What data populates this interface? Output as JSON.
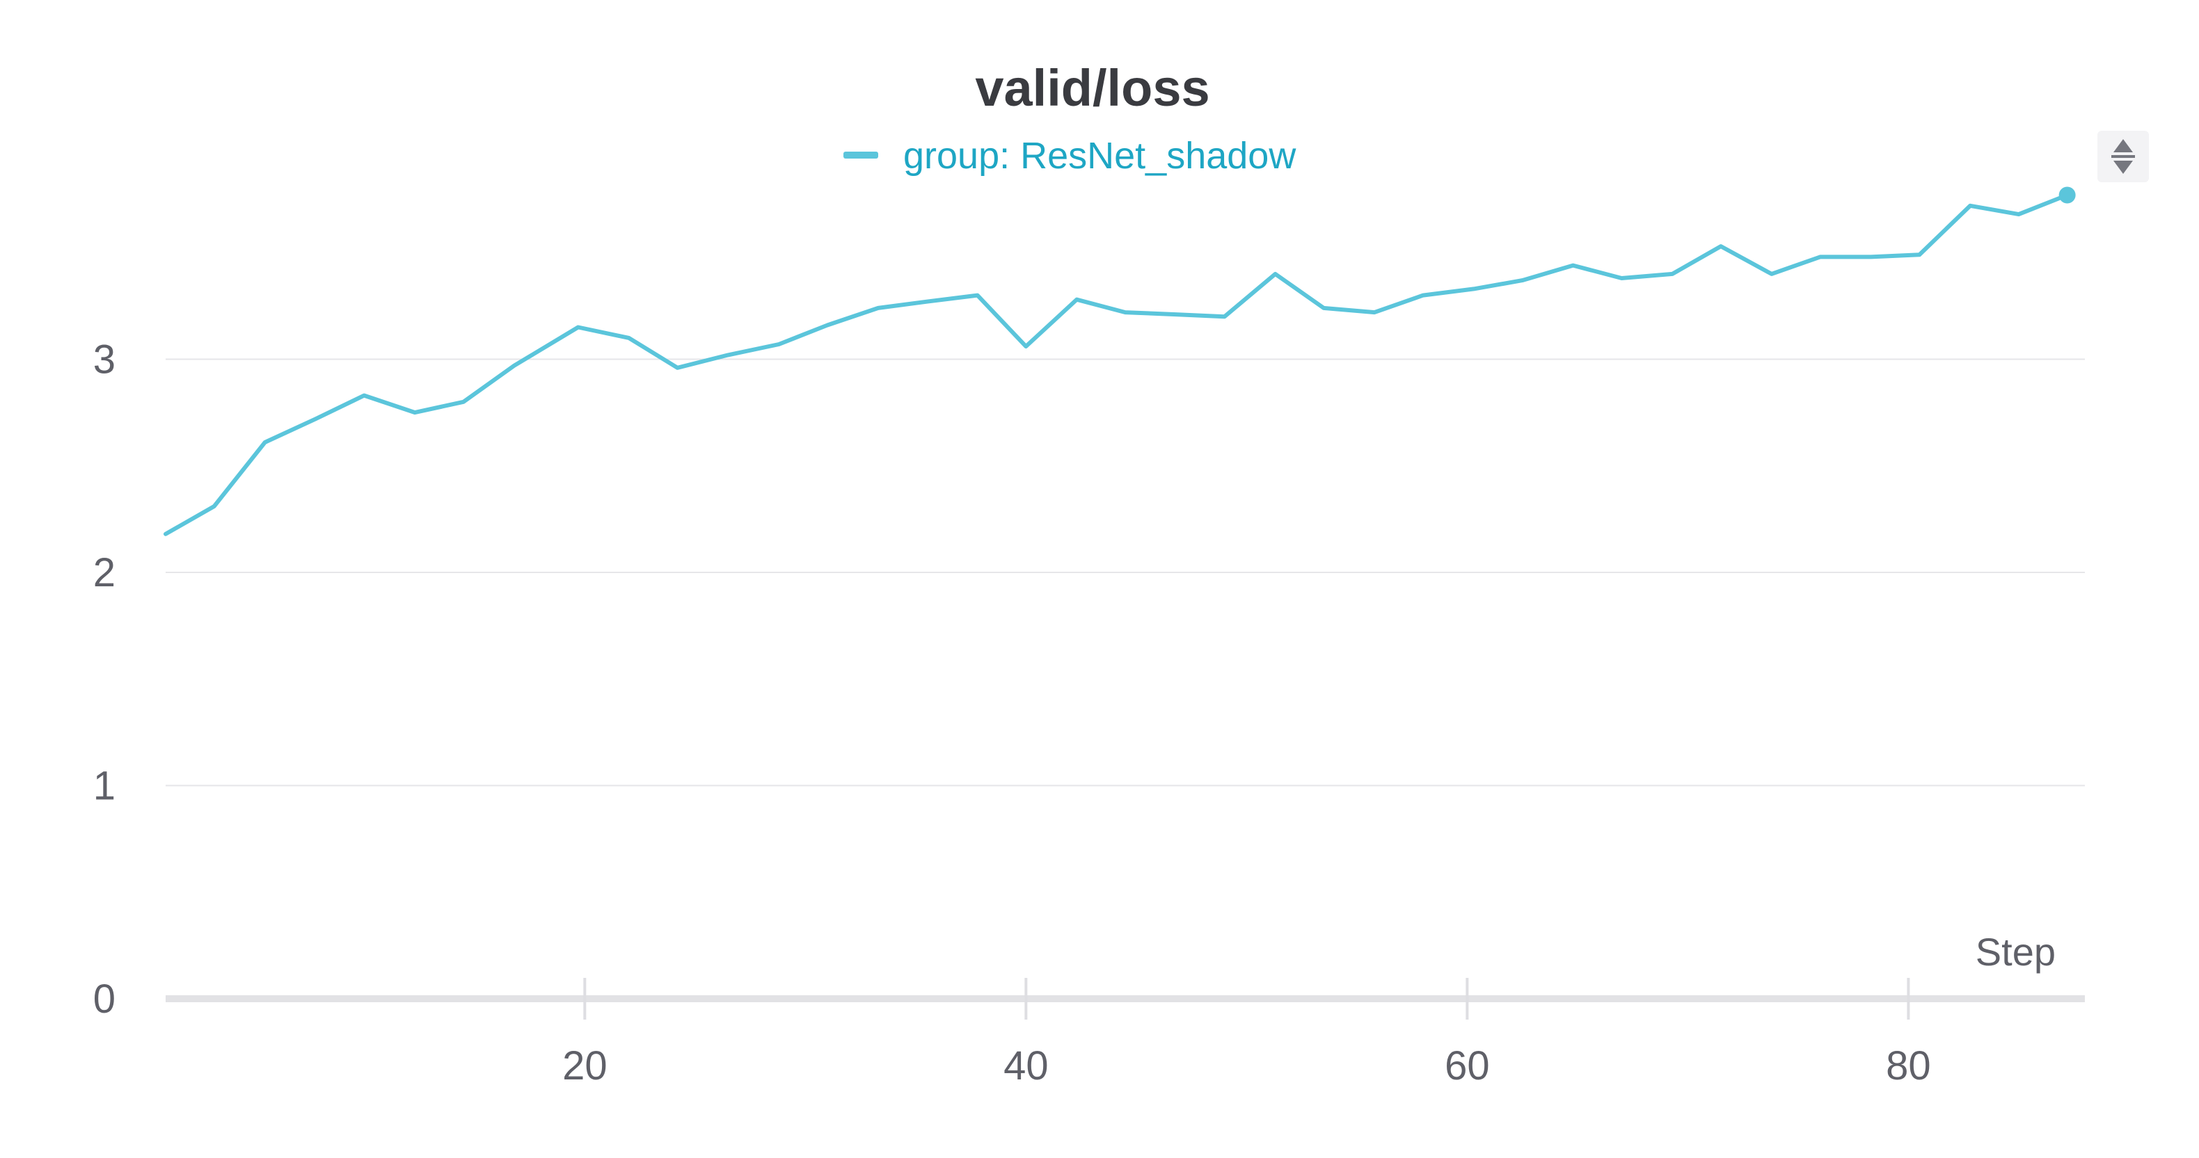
{
  "chart_data": {
    "type": "line",
    "title": "valid/loss",
    "xlabel": "Step",
    "ylabel": "",
    "xlim": [
      1,
      88
    ],
    "ylim": [
      0,
      4
    ],
    "x_ticks": [
      20,
      40,
      60,
      80
    ],
    "y_ticks": [
      0,
      1,
      2,
      3
    ],
    "grid": true,
    "legend_position": "top-center",
    "series": [
      {
        "name": "group: ResNet_shadow",
        "color": "#5bc5db",
        "x": [
          1.0,
          3.2,
          5.5,
          7.8,
          10.0,
          12.3,
          14.5,
          16.8,
          19.7,
          22.0,
          24.2,
          26.5,
          28.8,
          31.0,
          33.3,
          35.5,
          37.8,
          40.0,
          42.3,
          44.5,
          46.8,
          49.0,
          51.3,
          53.5,
          55.8,
          58.0,
          60.3,
          62.5,
          64.8,
          67.0,
          69.3,
          71.5,
          73.8,
          76.0,
          78.3,
          80.5,
          82.8,
          85.0,
          87.2
        ],
        "values": [
          2.18,
          2.31,
          2.61,
          2.72,
          2.83,
          2.75,
          2.8,
          2.97,
          3.15,
          3.1,
          2.96,
          3.02,
          3.07,
          3.16,
          3.24,
          3.27,
          3.3,
          3.06,
          3.28,
          3.22,
          3.21,
          3.2,
          3.4,
          3.24,
          3.22,
          3.3,
          3.33,
          3.37,
          3.44,
          3.38,
          3.4,
          3.53,
          3.4,
          3.48,
          3.48,
          3.49,
          3.72,
          3.68,
          3.77
        ]
      }
    ]
  },
  "icons": {
    "scroll_handle": "sort-arrows-icon"
  }
}
